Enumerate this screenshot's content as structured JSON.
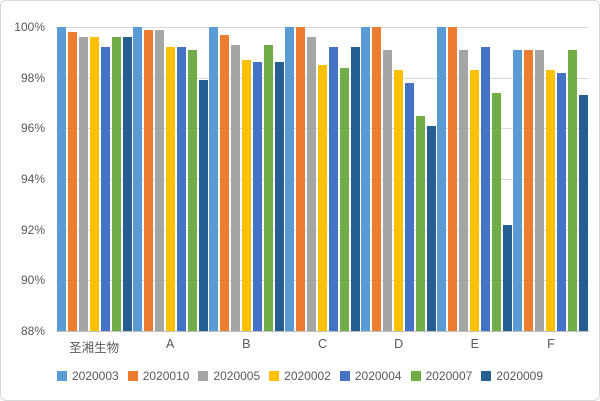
{
  "chart_data": {
    "type": "bar",
    "title": "",
    "xlabel": "",
    "ylabel": "",
    "ylim": [
      88,
      100
    ],
    "y_tick_step": 2,
    "y_tick_suffix": "%",
    "grid": true,
    "legend_position": "bottom",
    "categories": [
      "圣湘生物",
      "A",
      "B",
      "C",
      "D",
      "E",
      "F"
    ],
    "series": [
      {
        "name": "2020003",
        "color": "#5B9BD5",
        "values": [
          100.0,
          100.0,
          100.0,
          100.0,
          100.0,
          100.0,
          99.1
        ]
      },
      {
        "name": "2020010",
        "color": "#ED7D31",
        "values": [
          99.8,
          99.9,
          99.7,
          100.0,
          100.0,
          100.0,
          99.1
        ]
      },
      {
        "name": "2020005",
        "color": "#A5A5A5",
        "values": [
          99.6,
          99.9,
          99.3,
          99.6,
          99.1,
          99.1,
          99.1
        ]
      },
      {
        "name": "2020002",
        "color": "#FFC000",
        "values": [
          99.6,
          99.2,
          98.7,
          98.5,
          98.3,
          98.3,
          98.3
        ]
      },
      {
        "name": "2020004",
        "color": "#4472C4",
        "values": [
          99.2,
          99.2,
          98.6,
          99.2,
          97.8,
          99.2,
          98.2
        ]
      },
      {
        "name": "2020007",
        "color": "#70AD47",
        "values": [
          99.6,
          99.1,
          99.3,
          98.4,
          96.5,
          97.4,
          99.1
        ]
      },
      {
        "name": "2020009",
        "color": "#255E91",
        "values": [
          99.6,
          97.9,
          98.6,
          99.2,
          96.1,
          92.2,
          97.3
        ]
      }
    ],
    "colors": {
      "gridline": "#d9d9d9",
      "axis_line": "#bfbfbf",
      "label_text": "#595959"
    }
  }
}
